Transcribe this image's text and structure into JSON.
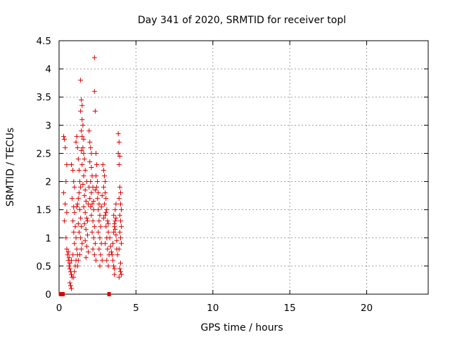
{
  "chart_data": {
    "type": "scatter",
    "title": "Day 341 of 2020, SRMTID for receiver topl",
    "xlabel": "GPS time / hours",
    "ylabel": "SRMTID / TECUs",
    "xlim": [
      0,
      24
    ],
    "ylim": [
      0,
      4.5
    ],
    "xticks": [
      0,
      5,
      10,
      15,
      20
    ],
    "xtick_labels": [
      "0",
      "5",
      "10",
      "15",
      "20"
    ],
    "yticks": [
      0,
      0.5,
      1,
      1.5,
      2,
      2.5,
      3,
      3.5,
      4,
      4.5
    ],
    "ytick_labels": [
      "0",
      "0.5",
      "1",
      "1.5",
      "2",
      "2.5",
      "3",
      "3.5",
      "4",
      "4.5"
    ],
    "grid": true,
    "color": "#dd0000",
    "series": [
      {
        "name": "SRMTID",
        "marker": "plus",
        "points": [
          [
            0.3,
            2.8
          ],
          [
            0.35,
            2.75
          ],
          [
            0.4,
            2.6
          ],
          [
            0.45,
            2.0
          ],
          [
            0.5,
            2.3
          ],
          [
            0.3,
            1.8
          ],
          [
            0.4,
            1.6
          ],
          [
            0.5,
            1.45
          ],
          [
            0.35,
            1.3
          ],
          [
            0.45,
            1.0
          ],
          [
            0.5,
            0.8
          ],
          [
            0.55,
            0.7
          ],
          [
            0.6,
            0.6
          ],
          [
            0.65,
            0.5
          ],
          [
            0.7,
            0.45
          ],
          [
            0.75,
            0.4
          ],
          [
            0.8,
            0.35
          ],
          [
            0.85,
            0.3
          ],
          [
            0.7,
            0.2
          ],
          [
            0.75,
            0.15
          ],
          [
            0.8,
            0.1
          ],
          [
            0.6,
            0.75
          ],
          [
            0.65,
            0.65
          ],
          [
            0.7,
            0.55
          ],
          [
            0.8,
            0.6
          ],
          [
            0.9,
            0.7
          ],
          [
            0.8,
            2.3
          ],
          [
            0.9,
            2.2
          ],
          [
            0.95,
            2.0
          ],
          [
            1.0,
            1.9
          ],
          [
            0.85,
            1.7
          ],
          [
            0.95,
            1.55
          ],
          [
            1.0,
            1.45
          ],
          [
            0.9,
            1.3
          ],
          [
            1.05,
            1.2
          ],
          [
            0.95,
            1.1
          ],
          [
            1.1,
            1.0
          ],
          [
            1.0,
            0.9
          ],
          [
            1.15,
            0.8
          ],
          [
            1.2,
            0.7
          ],
          [
            1.1,
            0.6
          ],
          [
            1.05,
            0.5
          ],
          [
            1.0,
            0.4
          ],
          [
            0.95,
            0.3
          ],
          [
            1.1,
            2.7
          ],
          [
            1.15,
            2.8
          ],
          [
            1.2,
            2.6
          ],
          [
            1.25,
            2.4
          ],
          [
            1.3,
            2.2
          ],
          [
            1.35,
            2.0
          ],
          [
            1.4,
            1.9
          ],
          [
            1.3,
            1.8
          ],
          [
            1.25,
            1.7
          ],
          [
            1.2,
            1.6
          ],
          [
            1.35,
            1.5
          ],
          [
            1.4,
            1.35
          ],
          [
            1.45,
            1.2
          ],
          [
            1.3,
            1.1
          ],
          [
            1.4,
            1.0
          ],
          [
            1.5,
            0.9
          ],
          [
            1.45,
            0.8
          ],
          [
            1.35,
            0.7
          ],
          [
            1.25,
            0.6
          ],
          [
            1.2,
            0.5
          ],
          [
            1.15,
            1.55
          ],
          [
            1.25,
            1.25
          ],
          [
            1.4,
            3.8
          ],
          [
            1.45,
            3.45
          ],
          [
            1.5,
            3.35
          ],
          [
            1.4,
            3.25
          ],
          [
            1.5,
            3.1
          ],
          [
            1.55,
            3.0
          ],
          [
            1.45,
            2.9
          ],
          [
            1.5,
            2.8
          ],
          [
            1.6,
            2.75
          ],
          [
            1.55,
            2.6
          ],
          [
            1.45,
            2.55
          ],
          [
            1.6,
            2.5
          ],
          [
            1.65,
            2.4
          ],
          [
            1.5,
            2.3
          ],
          [
            1.7,
            2.2
          ],
          [
            1.6,
            2.1
          ],
          [
            1.55,
            1.95
          ],
          [
            1.7,
            1.85
          ],
          [
            1.65,
            1.75
          ],
          [
            1.75,
            1.65
          ],
          [
            1.6,
            1.55
          ],
          [
            1.7,
            1.45
          ],
          [
            1.8,
            1.35
          ],
          [
            1.65,
            1.25
          ],
          [
            1.75,
            1.15
          ],
          [
            1.85,
            1.05
          ],
          [
            1.7,
            0.95
          ],
          [
            1.8,
            0.85
          ],
          [
            1.9,
            0.75
          ],
          [
            1.75,
            0.65
          ],
          [
            1.85,
            1.3
          ],
          [
            1.9,
            1.6
          ],
          [
            1.95,
            1.9
          ],
          [
            1.8,
            2.0
          ],
          [
            1.95,
            2.9
          ],
          [
            2.0,
            2.7
          ],
          [
            2.05,
            2.6
          ],
          [
            2.1,
            2.5
          ],
          [
            2.0,
            2.35
          ],
          [
            2.1,
            2.25
          ],
          [
            2.15,
            2.1
          ],
          [
            2.05,
            2.0
          ],
          [
            2.2,
            1.9
          ],
          [
            2.1,
            1.8
          ],
          [
            2.0,
            1.7
          ],
          [
            2.15,
            1.6
          ],
          [
            2.25,
            1.5
          ],
          [
            2.1,
            1.4
          ],
          [
            2.2,
            1.3
          ],
          [
            2.3,
            1.2
          ],
          [
            2.15,
            1.1
          ],
          [
            2.25,
            1.0
          ],
          [
            2.35,
            0.9
          ],
          [
            2.2,
            0.8
          ],
          [
            2.3,
            0.7
          ],
          [
            2.4,
            0.6
          ],
          [
            2.25,
            1.65
          ],
          [
            2.35,
            1.85
          ],
          [
            2.05,
            1.55
          ],
          [
            2.3,
            4.2
          ],
          [
            2.3,
            3.6
          ],
          [
            2.35,
            3.25
          ],
          [
            2.4,
            2.5
          ],
          [
            2.45,
            2.3
          ],
          [
            2.4,
            2.1
          ],
          [
            2.5,
            2.0
          ],
          [
            2.45,
            1.9
          ],
          [
            2.55,
            1.8
          ],
          [
            2.5,
            1.7
          ],
          [
            2.6,
            1.6
          ],
          [
            2.55,
            1.5
          ],
          [
            2.65,
            1.4
          ],
          [
            2.6,
            1.3
          ],
          [
            2.7,
            1.2
          ],
          [
            2.55,
            1.1
          ],
          [
            2.65,
            1.0
          ],
          [
            2.75,
            0.9
          ],
          [
            2.6,
            0.8
          ],
          [
            2.7,
            0.7
          ],
          [
            2.8,
            0.6
          ],
          [
            2.65,
            0.5
          ],
          [
            2.75,
            1.55
          ],
          [
            2.8,
            1.75
          ],
          [
            2.85,
            2.3
          ],
          [
            2.9,
            2.2
          ],
          [
            2.95,
            2.1
          ],
          [
            3.0,
            2.0
          ],
          [
            2.9,
            1.9
          ],
          [
            3.0,
            1.8
          ],
          [
            3.05,
            1.7
          ],
          [
            2.95,
            1.6
          ],
          [
            3.1,
            1.5
          ],
          [
            3.0,
            1.4
          ],
          [
            3.15,
            1.3
          ],
          [
            3.05,
            1.2
          ],
          [
            3.2,
            1.1
          ],
          [
            3.1,
            1.0
          ],
          [
            3.0,
            0.9
          ],
          [
            3.15,
            0.8
          ],
          [
            3.25,
            0.7
          ],
          [
            3.1,
            0.6
          ],
          [
            3.2,
            0.5
          ],
          [
            2.9,
            1.35
          ],
          [
            3.05,
            1.45
          ],
          [
            3.2,
            1.25
          ],
          [
            3.3,
            1.0
          ],
          [
            3.35,
            0.85
          ],
          [
            3.4,
            0.75
          ],
          [
            3.45,
            0.7
          ],
          [
            3.5,
            0.6
          ],
          [
            3.55,
            0.5
          ],
          [
            3.6,
            0.45
          ],
          [
            3.5,
            0.9
          ],
          [
            3.55,
            1.1
          ],
          [
            3.6,
            1.2
          ],
          [
            3.65,
            1.3
          ],
          [
            3.7,
            1.35
          ],
          [
            3.6,
            1.25
          ],
          [
            3.65,
            1.15
          ],
          [
            3.7,
            1.05
          ],
          [
            3.75,
            0.95
          ],
          [
            3.55,
            1.4
          ],
          [
            3.65,
            1.5
          ],
          [
            3.7,
            1.6
          ],
          [
            3.6,
            0.35
          ],
          [
            3.75,
            0.8
          ],
          [
            3.8,
            0.7
          ],
          [
            3.85,
            2.85
          ],
          [
            3.9,
            2.7
          ],
          [
            3.85,
            2.5
          ],
          [
            3.95,
            2.45
          ],
          [
            3.9,
            2.3
          ],
          [
            3.95,
            1.9
          ],
          [
            4.0,
            1.8
          ],
          [
            3.9,
            1.7
          ],
          [
            4.0,
            1.6
          ],
          [
            4.05,
            1.5
          ],
          [
            3.95,
            1.4
          ],
          [
            4.0,
            1.3
          ],
          [
            4.05,
            1.2
          ],
          [
            3.95,
            1.1
          ],
          [
            4.0,
            1.0
          ],
          [
            4.05,
            0.9
          ],
          [
            3.9,
            0.8
          ],
          [
            3.95,
            0.45
          ],
          [
            4.0,
            0.4
          ],
          [
            4.05,
            0.35
          ],
          [
            3.9,
            0.3
          ],
          [
            4.0,
            0.55
          ]
        ]
      }
    ],
    "zero_markers": [
      0.1,
      0.15,
      0.2,
      0.25,
      3.25
    ]
  }
}
